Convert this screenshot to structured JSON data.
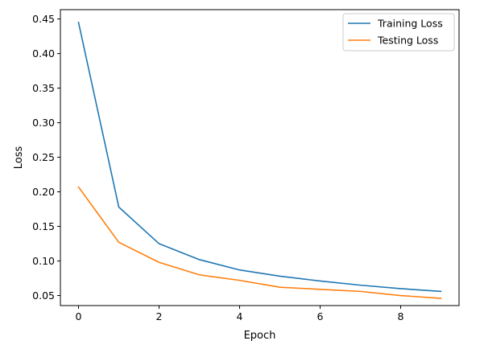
{
  "chart_data": {
    "type": "line",
    "title": "",
    "xlabel": "Epoch",
    "ylabel": "Loss",
    "x": [
      0,
      1,
      2,
      3,
      4,
      5,
      6,
      7,
      8,
      9
    ],
    "xlim": [
      -0.45,
      9.45
    ],
    "ylim": [
      0.0355,
      0.4635
    ],
    "xticks": [
      0,
      2,
      4,
      6,
      8
    ],
    "xtick_labels": [
      "0",
      "2",
      "4",
      "6",
      "8"
    ],
    "yticks": [
      0.05,
      0.1,
      0.15,
      0.2,
      0.25,
      0.3,
      0.35,
      0.4,
      0.45
    ],
    "ytick_labels": [
      "0.05",
      "0.10",
      "0.15",
      "0.20",
      "0.25",
      "0.30",
      "0.35",
      "0.40",
      "0.45"
    ],
    "grid": false,
    "legend": "top-right",
    "series": [
      {
        "name": "Training Loss",
        "color": "#1f77b4",
        "values": [
          0.445,
          0.178,
          0.125,
          0.102,
          0.087,
          0.078,
          0.071,
          0.065,
          0.06,
          0.056
        ]
      },
      {
        "name": "Testing Loss",
        "color": "#ff7f0e",
        "values": [
          0.207,
          0.127,
          0.098,
          0.08,
          0.072,
          0.062,
          0.059,
          0.056,
          0.05,
          0.046
        ]
      }
    ]
  }
}
